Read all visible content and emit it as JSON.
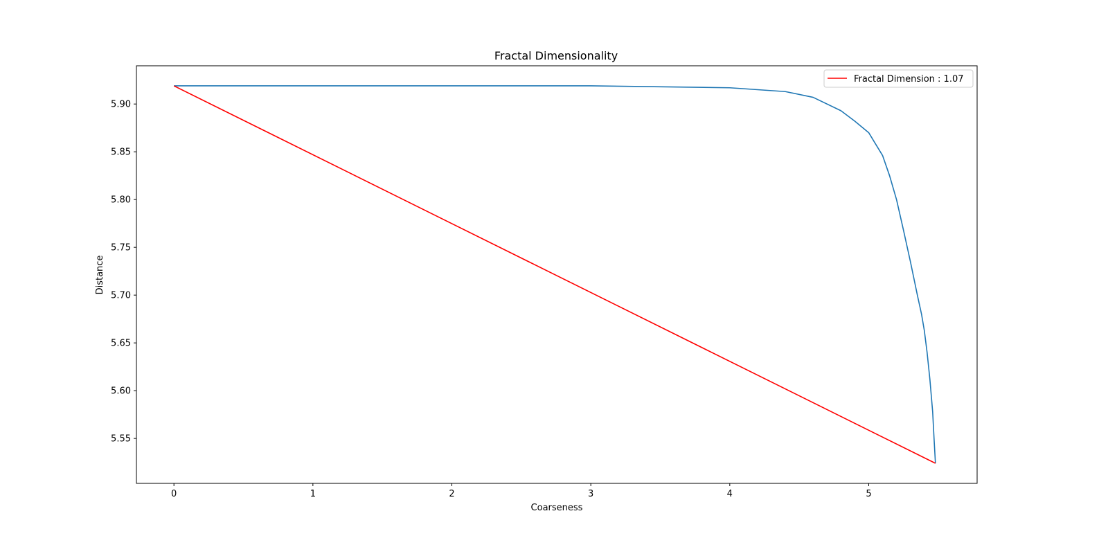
{
  "chart_data": {
    "type": "line",
    "title": "Fractal Dimensionality",
    "xlabel": "Coarseness",
    "ylabel": "Distance",
    "xlim": [
      -0.27,
      5.78
    ],
    "ylim": [
      5.503,
      5.94
    ],
    "xticks": [
      0,
      1,
      2,
      3,
      4,
      5
    ],
    "xtick_labels": [
      "0",
      "1",
      "2",
      "3",
      "4",
      "5"
    ],
    "yticks": [
      5.55,
      5.6,
      5.65,
      5.7,
      5.75,
      5.8,
      5.85,
      5.9
    ],
    "ytick_labels": [
      "5.55",
      "5.60",
      "5.65",
      "5.70",
      "5.75",
      "5.80",
      "5.85",
      "5.90"
    ],
    "grid": false,
    "legend_position": "top-right",
    "series": [
      {
        "color": "#1f77b4",
        "x": [
          0,
          1,
          2,
          3,
          3.5,
          4.0,
          4.2,
          4.4,
          4.6,
          4.8,
          4.9,
          5.0,
          5.05,
          5.1,
          5.15,
          5.2,
          5.25,
          5.3,
          5.35,
          5.38,
          5.4,
          5.42,
          5.44,
          5.46,
          5.47,
          5.48
        ],
        "y": [
          5.919,
          5.919,
          5.919,
          5.919,
          5.918,
          5.917,
          5.915,
          5.913,
          5.907,
          5.893,
          5.882,
          5.87,
          5.858,
          5.846,
          5.825,
          5.8,
          5.768,
          5.735,
          5.7,
          5.68,
          5.663,
          5.64,
          5.612,
          5.578,
          5.55,
          5.524
        ]
      },
      {
        "name": "Fractal Dimension : 1.07",
        "color": "#ff0000",
        "x": [
          0,
          5.48
        ],
        "y": [
          5.919,
          5.524
        ]
      }
    ]
  }
}
